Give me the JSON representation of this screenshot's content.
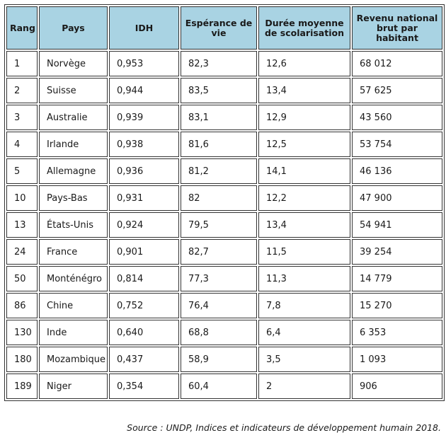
{
  "table": {
    "headers": [
      "Rang",
      "Pays",
      "IDH",
      "Espérance de vie",
      "Durée moyenne de scolarisation",
      "Revenu national brut par habitant"
    ],
    "rows": [
      [
        "1",
        "Norvège",
        "0,953",
        "82,3",
        "12,6",
        "68 012"
      ],
      [
        "2",
        "Suisse",
        "0,944",
        "83,5",
        "13,4",
        "57 625"
      ],
      [
        "3",
        "Australie",
        "0,939",
        "83,1",
        "12,9",
        "43 560"
      ],
      [
        "4",
        "Irlande",
        "0,938",
        "81,6",
        "12,5",
        "53 754"
      ],
      [
        "5",
        "Allemagne",
        "0,936",
        "81,2",
        "14,1",
        "46 136"
      ],
      [
        "10",
        "Pays-Bas",
        "0,931",
        "82",
        "12,2",
        "47 900"
      ],
      [
        "13",
        "États-Unis",
        "0,924",
        "79,5",
        "13,4",
        "54 941"
      ],
      [
        "24",
        "France",
        "0,901",
        "82,7",
        "11,5",
        "39 254"
      ],
      [
        "50",
        "Monténégro",
        "0,814",
        "77,3",
        "11,3",
        "14 779"
      ],
      [
        "86",
        "Chine",
        "0,752",
        "76,4",
        "7,8",
        "15 270"
      ],
      [
        "130",
        "Inde",
        "0,640",
        "68,8",
        "6,4",
        "6 353"
      ],
      [
        "180",
        "Mozambique",
        "0,437",
        "58,9",
        "3,5",
        "1 093"
      ],
      [
        "189",
        "Niger",
        "0,354",
        "60,4",
        "2",
        "906"
      ]
    ]
  },
  "source": "Source : UNDP, Indices et indicateurs de développement humain 2018.",
  "colors": {
    "header_bg": "#a9d3e3",
    "border": "#333333"
  }
}
